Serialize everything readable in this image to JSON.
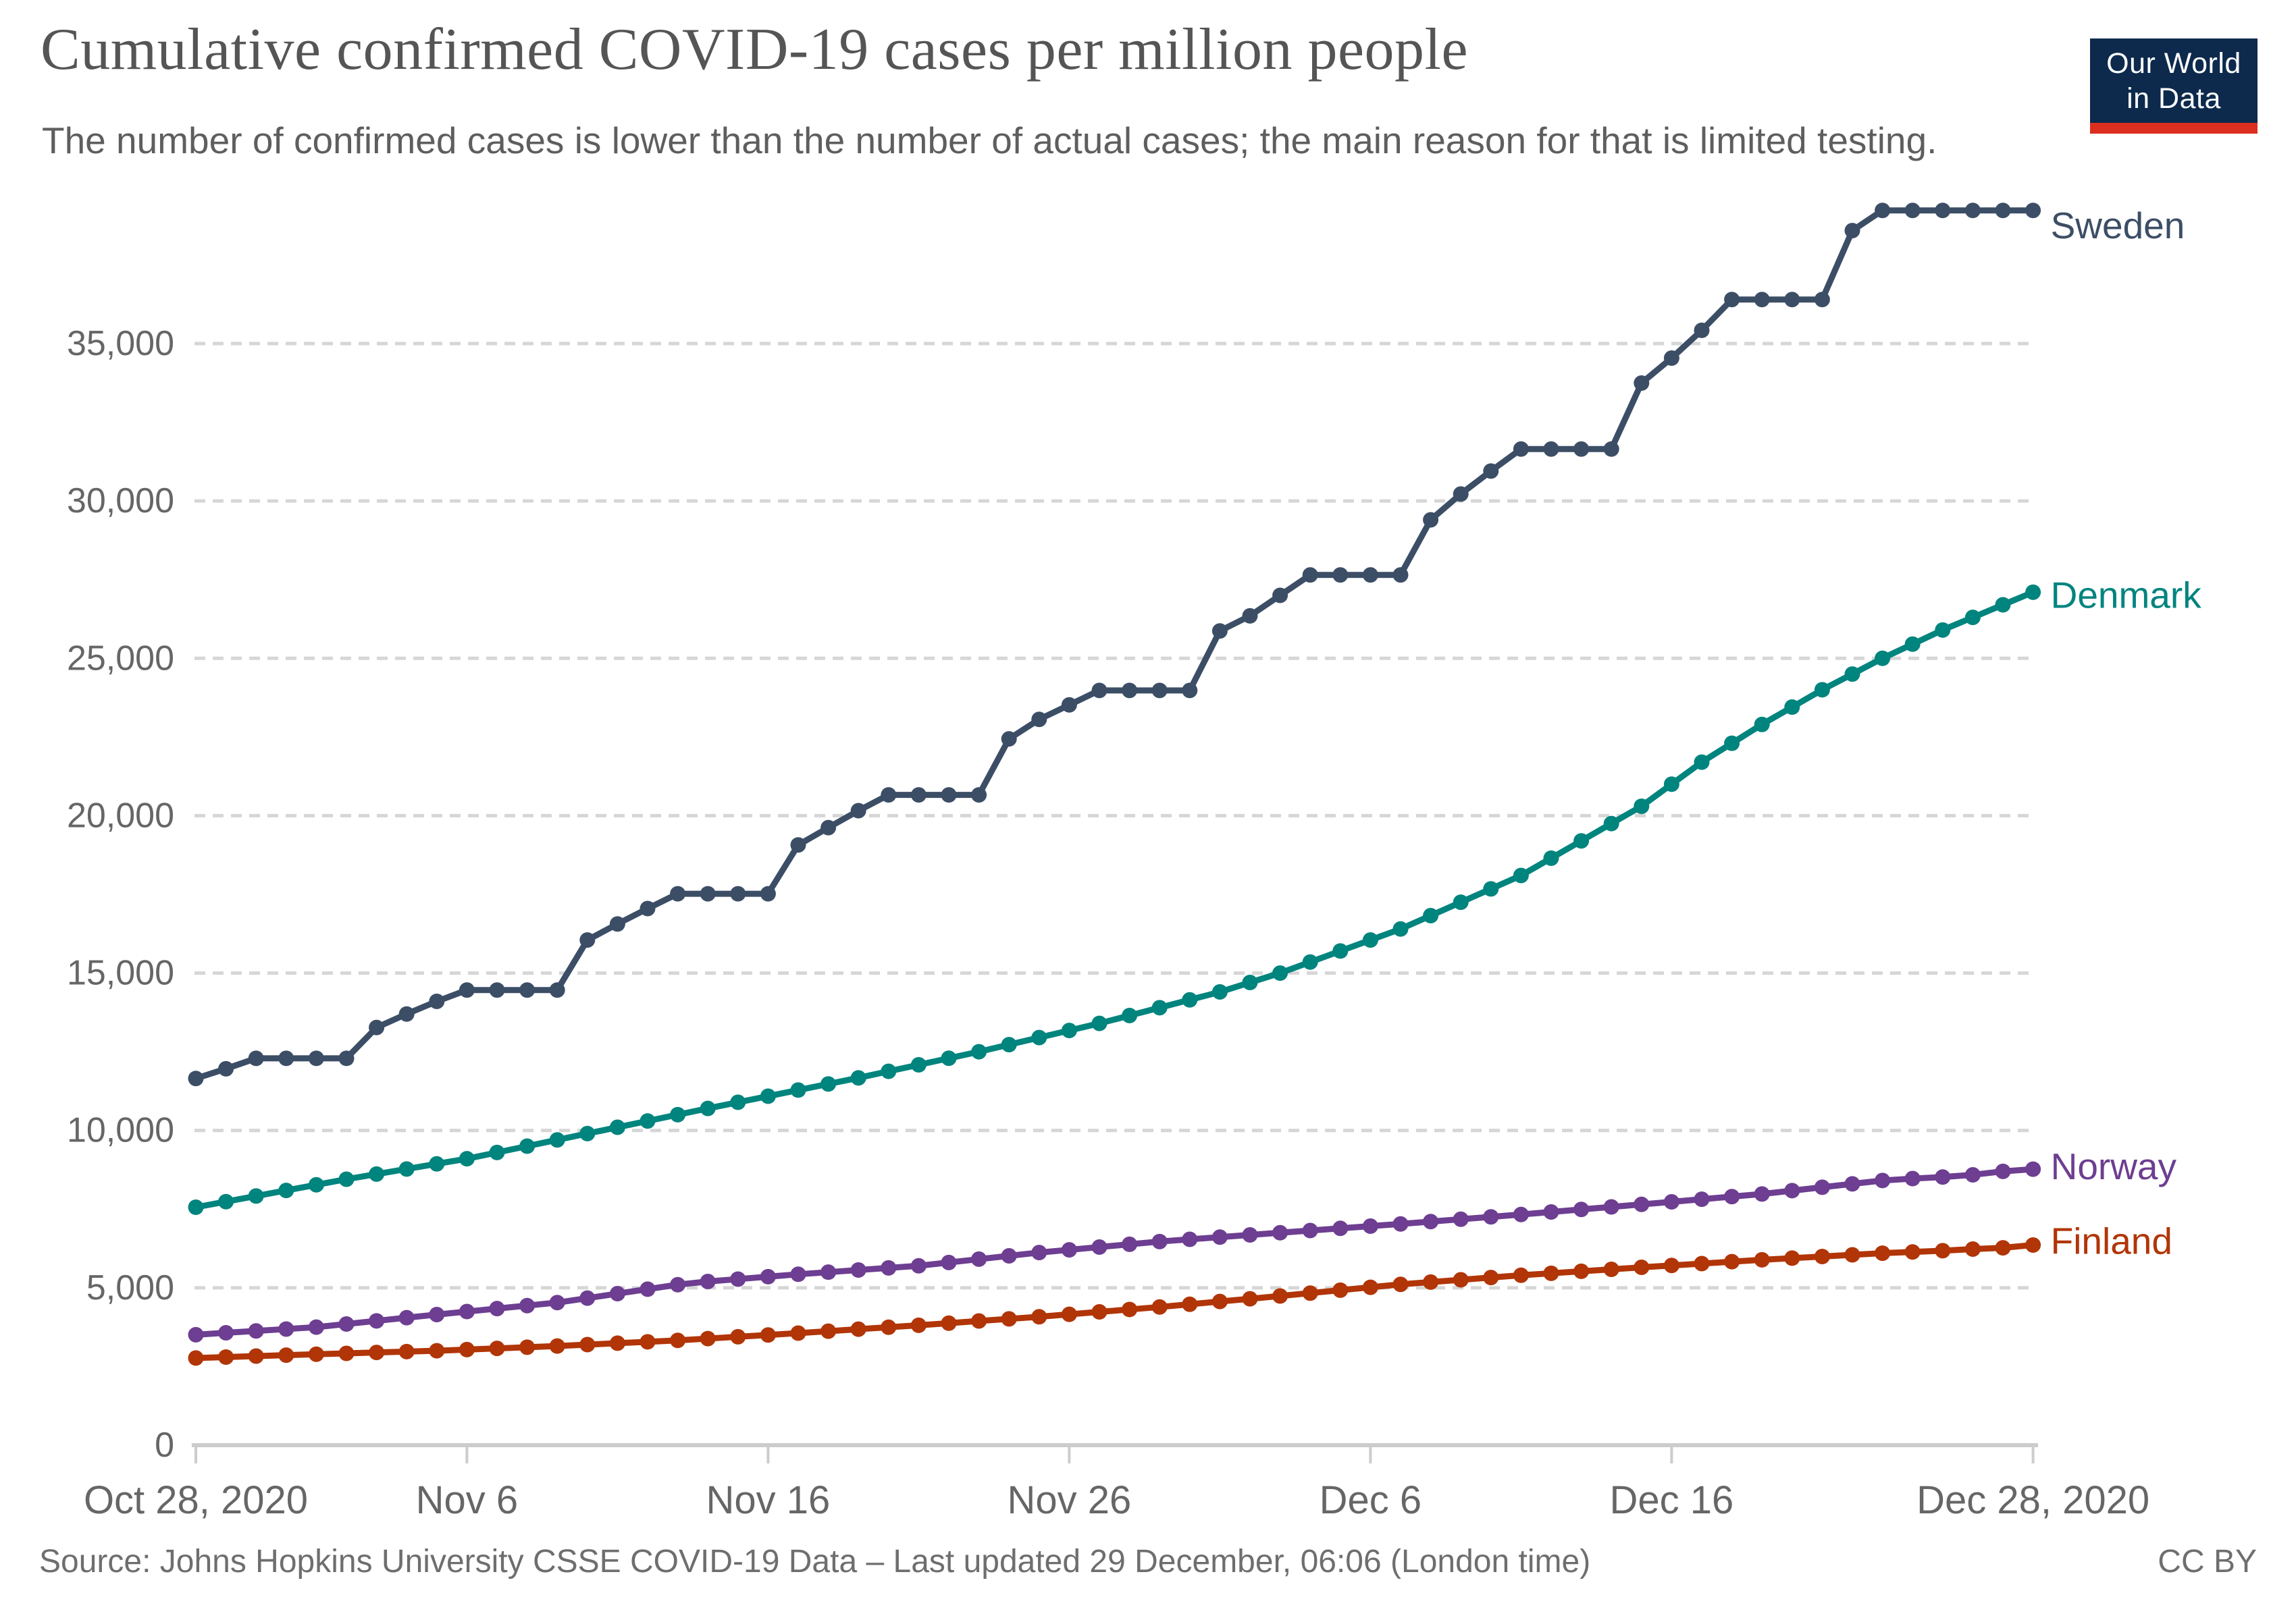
{
  "header": {
    "title": "Cumulative confirmed COVID-19 cases per million people",
    "subtitle": "The number of confirmed cases is lower than the number of actual cases; the main reason for that is limited testing.",
    "logo": {
      "line1": "Our World",
      "line2": "in Data",
      "bg_color": "#0d2a4d",
      "stripe_color": "#dc2f20",
      "text_color": "#ffffff"
    }
  },
  "footer": {
    "source": "Source: Johns Hopkins University CSSE COVID-19 Data – Last updated 29 December, 06:06 (London time)",
    "license": "CC BY"
  },
  "chart_data": {
    "type": "line",
    "title": "Cumulative confirmed COVID-19 cases per million people",
    "xlabel": "",
    "ylabel": "",
    "ylim": [
      0,
      39500
    ],
    "grid": "dashed-horizontal",
    "legend_position": "line-end-labels",
    "y_ticks": [
      0,
      5000,
      10000,
      15000,
      20000,
      25000,
      30000,
      35000
    ],
    "x_ticks": [
      {
        "day": 0,
        "label": "Oct 28, 2020"
      },
      {
        "day": 9,
        "label": "Nov 6"
      },
      {
        "day": 19,
        "label": "Nov 16"
      },
      {
        "day": 29,
        "label": "Nov 26"
      },
      {
        "day": 39,
        "label": "Dec 6"
      },
      {
        "day": 49,
        "label": "Dec 16"
      },
      {
        "day": 61,
        "label": "Dec 28, 2020"
      }
    ],
    "dates": [
      "Oct 28",
      "Oct 29",
      "Oct 30",
      "Oct 31",
      "Nov 1",
      "Nov 2",
      "Nov 3",
      "Nov 4",
      "Nov 5",
      "Nov 6",
      "Nov 7",
      "Nov 8",
      "Nov 9",
      "Nov 10",
      "Nov 11",
      "Nov 12",
      "Nov 13",
      "Nov 14",
      "Nov 15",
      "Nov 16",
      "Nov 17",
      "Nov 18",
      "Nov 19",
      "Nov 20",
      "Nov 21",
      "Nov 22",
      "Nov 23",
      "Nov 24",
      "Nov 25",
      "Nov 26",
      "Nov 27",
      "Nov 28",
      "Nov 29",
      "Nov 30",
      "Dec 1",
      "Dec 2",
      "Dec 3",
      "Dec 4",
      "Dec 5",
      "Dec 6",
      "Dec 7",
      "Dec 8",
      "Dec 9",
      "Dec 10",
      "Dec 11",
      "Dec 12",
      "Dec 13",
      "Dec 14",
      "Dec 15",
      "Dec 16",
      "Dec 17",
      "Dec 18",
      "Dec 19",
      "Dec 20",
      "Dec 21",
      "Dec 22",
      "Dec 23",
      "Dec 24",
      "Dec 25",
      "Dec 26",
      "Dec 27",
      "Dec 28"
    ],
    "series": [
      {
        "name": "Sweden",
        "color": "#3C4E66",
        "values": [
          11650,
          11960,
          12290,
          12290,
          12290,
          12290,
          13270,
          13700,
          14100,
          14460,
          14460,
          14460,
          14460,
          16050,
          16560,
          17050,
          17520,
          17520,
          17520,
          17520,
          19070,
          19620,
          20160,
          20660,
          20660,
          20660,
          20660,
          22440,
          23060,
          23520,
          23980,
          23980,
          23980,
          23980,
          25870,
          26350,
          27000,
          27650,
          27650,
          27650,
          27650,
          29400,
          30220,
          30950,
          31650,
          31650,
          31650,
          31650,
          33745,
          34540,
          35420,
          36400,
          36400,
          36400,
          36400,
          38590,
          39230,
          39230,
          39230,
          39230,
          39230,
          39230
        ]
      },
      {
        "name": "Denmark",
        "color": "#00847E",
        "values": [
          7560,
          7738,
          7916,
          8094,
          8272,
          8450,
          8613,
          8775,
          8938,
          9100,
          9300,
          9500,
          9700,
          9900,
          10100,
          10300,
          10500,
          10700,
          10894,
          11088,
          11282,
          11476,
          11670,
          11878,
          12085,
          12293,
          12500,
          12725,
          12950,
          13175,
          13400,
          13650,
          13900,
          14150,
          14400,
          14700,
          15000,
          15350,
          15700,
          16050,
          16400,
          16825,
          17250,
          17675,
          18100,
          18650,
          19200,
          19750,
          20300,
          21000,
          21700,
          22300,
          22900,
          23450,
          24000,
          24500,
          25000,
          25450,
          25900,
          26300,
          26700,
          27100
        ]
      },
      {
        "name": "Norway",
        "color": "#6D3E91",
        "values": [
          3510,
          3570,
          3630,
          3690,
          3750,
          3850,
          3950,
          4050,
          4150,
          4245,
          4340,
          4435,
          4530,
          4672,
          4815,
          4957,
          5100,
          5200,
          5277,
          5353,
          5430,
          5497,
          5565,
          5632,
          5700,
          5805,
          5910,
          6015,
          6120,
          6207,
          6295,
          6382,
          6470,
          6540,
          6610,
          6680,
          6750,
          6820,
          6890,
          6960,
          7030,
          7105,
          7180,
          7255,
          7330,
          7410,
          7490,
          7570,
          7650,
          7732,
          7815,
          7897,
          7980,
          8087,
          8195,
          8302,
          8410,
          8470,
          8520,
          8590,
          8700,
          8770
        ]
      },
      {
        "name": "Finland",
        "color": "#B13507",
        "values": [
          2770,
          2800,
          2830,
          2860,
          2890,
          2917,
          2945,
          2972,
          3000,
          3037,
          3075,
          3112,
          3150,
          3195,
          3240,
          3285,
          3330,
          3387,
          3445,
          3502,
          3560,
          3622,
          3685,
          3747,
          3810,
          3877,
          3945,
          4012,
          4080,
          4157,
          4235,
          4312,
          4390,
          4477,
          4565,
          4652,
          4740,
          4832,
          4925,
          5017,
          5110,
          5182,
          5255,
          5327,
          5400,
          5462,
          5525,
          5587,
          5650,
          5710,
          5770,
          5830,
          5890,
          5942,
          5995,
          6047,
          6100,
          6140,
          6180,
          6230,
          6270,
          6360
        ]
      }
    ]
  }
}
